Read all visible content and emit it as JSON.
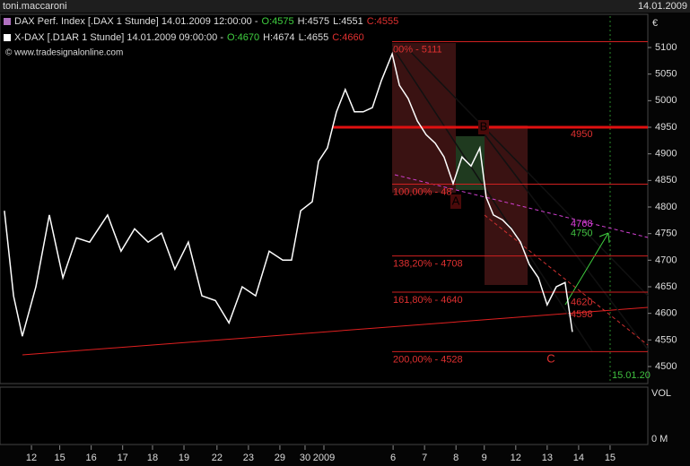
{
  "top_bar": {
    "user": "toni.maccaroni",
    "date": "14.01.2009"
  },
  "chart_data": {
    "type": "line",
    "series": [
      {
        "name": "DAX Perf. Index [.DAX  1 Stunde] 14.01.2009 12:00:00 -",
        "color": "#ffffff",
        "ohlc": [
          "O:4575",
          "H:4575",
          "L:4551",
          "C:4555"
        ],
        "x": [
          1.4,
          4.3,
          7.1,
          11.4,
          15.7,
          20,
          24.3,
          28.5,
          34.2,
          38.5,
          42.8,
          47.1,
          51.4,
          55.6,
          59.9,
          64.2,
          68.5,
          72.8,
          77,
          81.3,
          85.6,
          89.9,
          92.7,
          95.6,
          99.3,
          101.3,
          104.1,
          107,
          109.8,
          112.7,
          115.5,
          118.4,
          121.3,
          124.7,
          127,
          129.8,
          132.7,
          135.5,
          138.4,
          141.2,
          144.1,
          146.9,
          149.8,
          152.6,
          154.6,
          156.9,
          159.8,
          162.6,
          165.5,
          168.3,
          171.2,
          174,
          176.9,
          179.7,
          182
        ],
        "values": [
          4793,
          4633,
          4557,
          4650,
          4785,
          4667,
          4742,
          4734,
          4785,
          4717,
          4759,
          4734,
          4751,
          4683,
          4734,
          4633,
          4624,
          4582,
          4650,
          4633,
          4717,
          4700,
          4700,
          4793,
          4810,
          4886,
          4911,
          4979,
          5021,
          4979,
          4979,
          4987,
          5038,
          5088,
          5029,
          5004,
          4962,
          4936,
          4920,
          4894,
          4844,
          4894,
          4877,
          4911,
          4818,
          4785,
          4776,
          4759,
          4734,
          4692,
          4667,
          4616,
          4650,
          4658,
          4565
        ]
      }
    ],
    "second_line": {
      "name": "X-DAX [.D1AR  1 Stunde] 14.01.2009 09:00:00 -",
      "ohlc": [
        "O:4670",
        "H:4674",
        "L:4655",
        "C:4660"
      ]
    },
    "copyright": "© www.tradesignalonline.com",
    "currency": "€",
    "volume_label": "VOL",
    "volume_zero": "0 M",
    "xlim": [
      0,
      206
    ],
    "ylim": [
      4468,
      5159
    ],
    "yticks": [
      4500,
      4550,
      4600,
      4650,
      4700,
      4750,
      4800,
      4850,
      4900,
      4950,
      5000,
      5050,
      5100
    ],
    "xticks": [
      {
        "value": 10,
        "label": "12"
      },
      {
        "value": 19,
        "label": "15"
      },
      {
        "value": 29,
        "label": "16"
      },
      {
        "value": 39,
        "label": "17"
      },
      {
        "value": 48.5,
        "label": "18"
      },
      {
        "value": 58.5,
        "label": "19"
      },
      {
        "value": 69,
        "label": "22"
      },
      {
        "value": 79,
        "label": "23"
      },
      {
        "value": 89,
        "label": "29"
      },
      {
        "value": 97,
        "label": "30"
      },
      {
        "value": 103,
        "label": "2009"
      },
      {
        "value": 125,
        "label": "6"
      },
      {
        "value": 135,
        "label": "7"
      },
      {
        "value": 145,
        "label": "8"
      },
      {
        "value": 154,
        "label": "9"
      },
      {
        "value": 164,
        "label": "12"
      },
      {
        "value": 174,
        "label": "13"
      },
      {
        "value": 184,
        "label": "14"
      },
      {
        "value": 194,
        "label": "15"
      }
    ],
    "fib_levels": [
      {
        "value": 5111,
        "label": "00% - 5111"
      },
      {
        "value": 4843,
        "label": "100,00% - 48"
      },
      {
        "value": 4708,
        "label": "138,20% - 4708"
      },
      {
        "value": 4640,
        "label": "161,80% - 4640"
      },
      {
        "value": 4528,
        "label": "200,00% - 4528"
      }
    ],
    "resistance": 4950,
    "price_marks": [
      {
        "value": 4768,
        "color": "#e040e0"
      },
      {
        "value": 4750,
        "color": "#40c040"
      },
      {
        "value": 4620,
        "color": "#e03030"
      },
      {
        "value": 4598,
        "color": "#e03030"
      }
    ],
    "points": [
      "A",
      "B",
      "C"
    ],
    "date_label": "15.01.20"
  }
}
